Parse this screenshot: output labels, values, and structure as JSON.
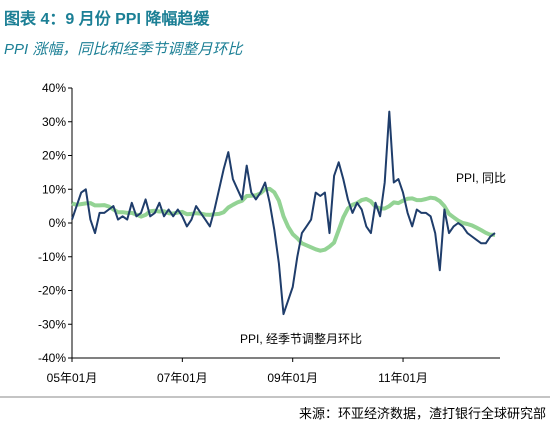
{
  "chart_data": {
    "type": "line",
    "title": "图表 4：9 月份 PPI 降幅趋缓",
    "subtitle": "PPI 涨幅，同比和经季节调整月环比",
    "source": "来源：环亚经济数据，渣打银行全球研究部",
    "categories": [
      "05年01月",
      null,
      null,
      null,
      null,
      null,
      null,
      null,
      null,
      null,
      null,
      null,
      null,
      null,
      null,
      null,
      null,
      null,
      null,
      null,
      null,
      null,
      null,
      null,
      "07年01月",
      null,
      null,
      null,
      null,
      null,
      null,
      null,
      null,
      null,
      null,
      null,
      null,
      null,
      null,
      null,
      null,
      null,
      null,
      null,
      null,
      null,
      null,
      null,
      "09年01月",
      null,
      null,
      null,
      null,
      null,
      null,
      null,
      null,
      null,
      null,
      null,
      null,
      null,
      null,
      null,
      null,
      null,
      null,
      null,
      null,
      null,
      null,
      null,
      "11年01月",
      null,
      null,
      null,
      null,
      null,
      null,
      null,
      null,
      null,
      null,
      null,
      null,
      null,
      null,
      null,
      null,
      null,
      null,
      null,
      null
    ],
    "series": [
      {
        "name": "PPI, 同比",
        "color": "#93d394",
        "values": [
          5.8,
          5.4,
          5.6,
          5.8,
          5.9,
          5.2,
          5.2,
          5.3,
          4.9,
          4.0,
          3.2,
          3.2,
          3.0,
          3.0,
          2.5,
          1.9,
          2.4,
          3.5,
          3.6,
          3.4,
          3.5,
          2.9,
          2.8,
          3.1,
          3.3,
          2.6,
          2.7,
          2.9,
          2.8,
          2.5,
          2.4,
          2.6,
          2.7,
          3.2,
          4.6,
          5.4,
          6.1,
          6.6,
          8.0,
          8.1,
          8.2,
          8.8,
          10.0,
          10.1,
          9.1,
          6.6,
          2.0,
          -1.1,
          -3.3,
          -4.5,
          -6.0,
          -6.6,
          -7.2,
          -7.8,
          -8.2,
          -7.9,
          -7.0,
          -5.8,
          -2.1,
          1.7,
          4.3,
          5.4,
          5.9,
          6.8,
          7.1,
          6.4,
          4.8,
          4.3,
          4.3,
          5.0,
          6.1,
          5.9,
          6.6,
          7.2,
          7.3,
          6.8,
          6.8,
          7.1,
          7.5,
          7.3,
          6.5,
          5.0,
          2.7,
          1.7,
          0.7,
          0.0,
          -0.3,
          -0.7,
          -1.4,
          -2.1,
          -2.9,
          -3.5,
          -3.5
        ]
      },
      {
        "name": "PPI, 经季节调整月环比",
        "color": "#1f3d6b",
        "values": [
          1,
          5,
          9,
          10,
          1,
          -3,
          3,
          3,
          4,
          5,
          1,
          2,
          1,
          6,
          2,
          3,
          7,
          2,
          3,
          6,
          2,
          4,
          2,
          4,
          2,
          -1,
          1,
          5,
          3,
          1,
          -1,
          4,
          10,
          16,
          21,
          13,
          10,
          7,
          17,
          9,
          7,
          9,
          12,
          6,
          -2,
          -12,
          -27,
          -23,
          -19,
          -10,
          -3,
          -1,
          1,
          9,
          8,
          9,
          -3,
          14,
          18,
          13,
          7,
          3,
          6,
          4,
          -1,
          -3,
          6,
          2,
          12,
          33,
          12,
          13,
          9,
          3,
          -1,
          4,
          3,
          3,
          2,
          -3,
          -14,
          4,
          -3,
          -1,
          0,
          -1,
          -3,
          -4,
          -5,
          -6,
          -6,
          -4,
          -3
        ]
      }
    ],
    "ylim": [
      -40,
      40
    ],
    "yticks": [
      {
        "value": -40,
        "label": "-40%"
      },
      {
        "value": -30,
        "label": "-30%"
      },
      {
        "value": -20,
        "label": "-20%"
      },
      {
        "value": -10,
        "label": "-10%"
      },
      {
        "value": 0,
        "label": "0%"
      },
      {
        "value": 10,
        "label": "10%"
      },
      {
        "value": 20,
        "label": "20%"
      },
      {
        "value": 30,
        "label": "30%"
      },
      {
        "value": 40,
        "label": "40%"
      }
    ],
    "grid": false
  }
}
